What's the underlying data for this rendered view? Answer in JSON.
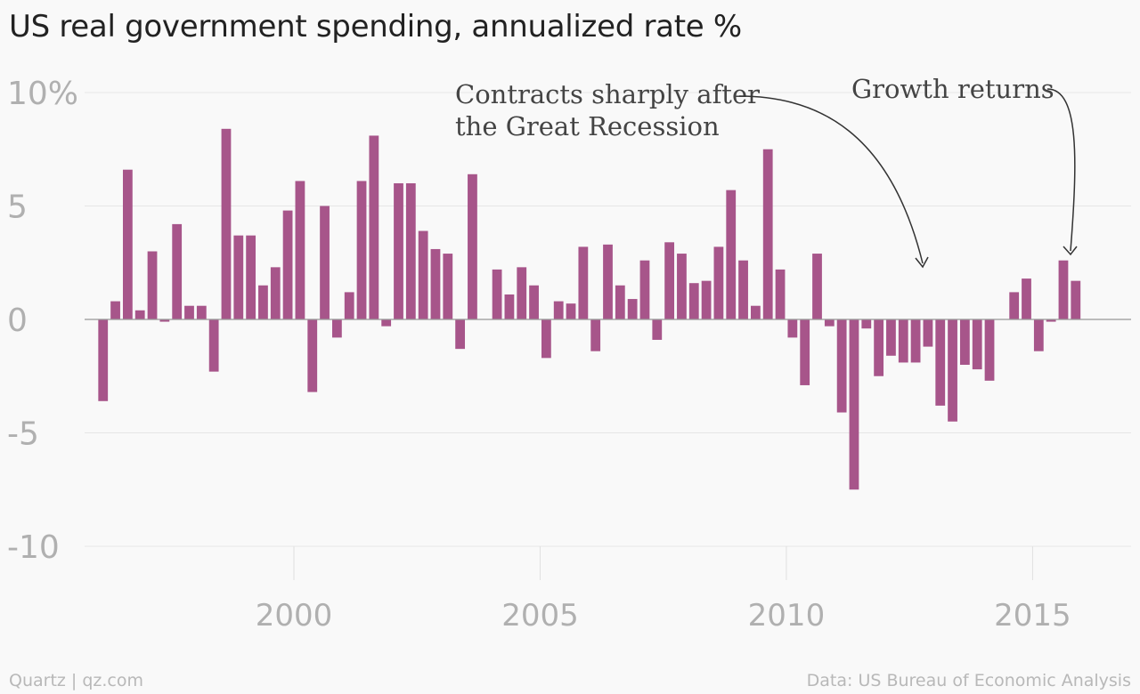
{
  "chart_data": {
    "type": "bar",
    "title": "US real government spending, annualized rate %",
    "quarter_start": "1996-Q1",
    "values": [
      -3.6,
      0.8,
      6.6,
      0.4,
      3.0,
      -0.1,
      4.2,
      0.6,
      0.6,
      -2.3,
      8.4,
      3.7,
      3.7,
      1.5,
      2.3,
      4.8,
      6.1,
      -3.2,
      5.0,
      -0.8,
      1.2,
      6.1,
      8.1,
      -0.3,
      6.0,
      6.0,
      3.9,
      3.1,
      2.9,
      -1.3,
      6.4,
      0.0,
      2.2,
      1.1,
      2.3,
      1.5,
      -1.7,
      0.8,
      0.7,
      3.2,
      -1.4,
      3.3,
      1.5,
      0.9,
      2.6,
      -0.9,
      3.4,
      2.9,
      1.6,
      1.7,
      3.2,
      5.7,
      2.6,
      0.6,
      7.5,
      2.2,
      -0.8,
      -2.9,
      2.9,
      -0.3,
      -4.1,
      -7.5,
      -0.4,
      -2.5,
      -1.6,
      -1.9,
      -1.9,
      -1.2,
      -3.8,
      -4.5,
      -2.0,
      -2.2,
      -2.7,
      0.0,
      1.2,
      1.8,
      -1.4,
      -0.1,
      2.6,
      1.7
    ],
    "y_ticks": [
      {
        "value": 10,
        "label": "10%"
      },
      {
        "value": 5,
        "label": "5"
      },
      {
        "value": 0,
        "label": "0"
      },
      {
        "value": -5,
        "label": "-5"
      },
      {
        "value": -10,
        "label": "-10"
      }
    ],
    "x_ticks": [
      {
        "value": 2000,
        "label": "2000"
      },
      {
        "value": 2005,
        "label": "2005"
      },
      {
        "value": 2010,
        "label": "2010"
      },
      {
        "value": 2015,
        "label": "2015"
      }
    ],
    "ylim": [
      -10,
      10
    ],
    "xlim": [
      1995.75,
      2017.0
    ],
    "grid": true,
    "bar_color": "#a7558a",
    "annotations": [
      {
        "lines": [
          "Contracts sharply after",
          "the Great Recession"
        ]
      },
      {
        "lines": [
          "Growth returns"
        ]
      }
    ]
  },
  "footer": {
    "credit": "Quartz | qz.com",
    "source": "Data: US Bureau of Economic Analysis"
  }
}
